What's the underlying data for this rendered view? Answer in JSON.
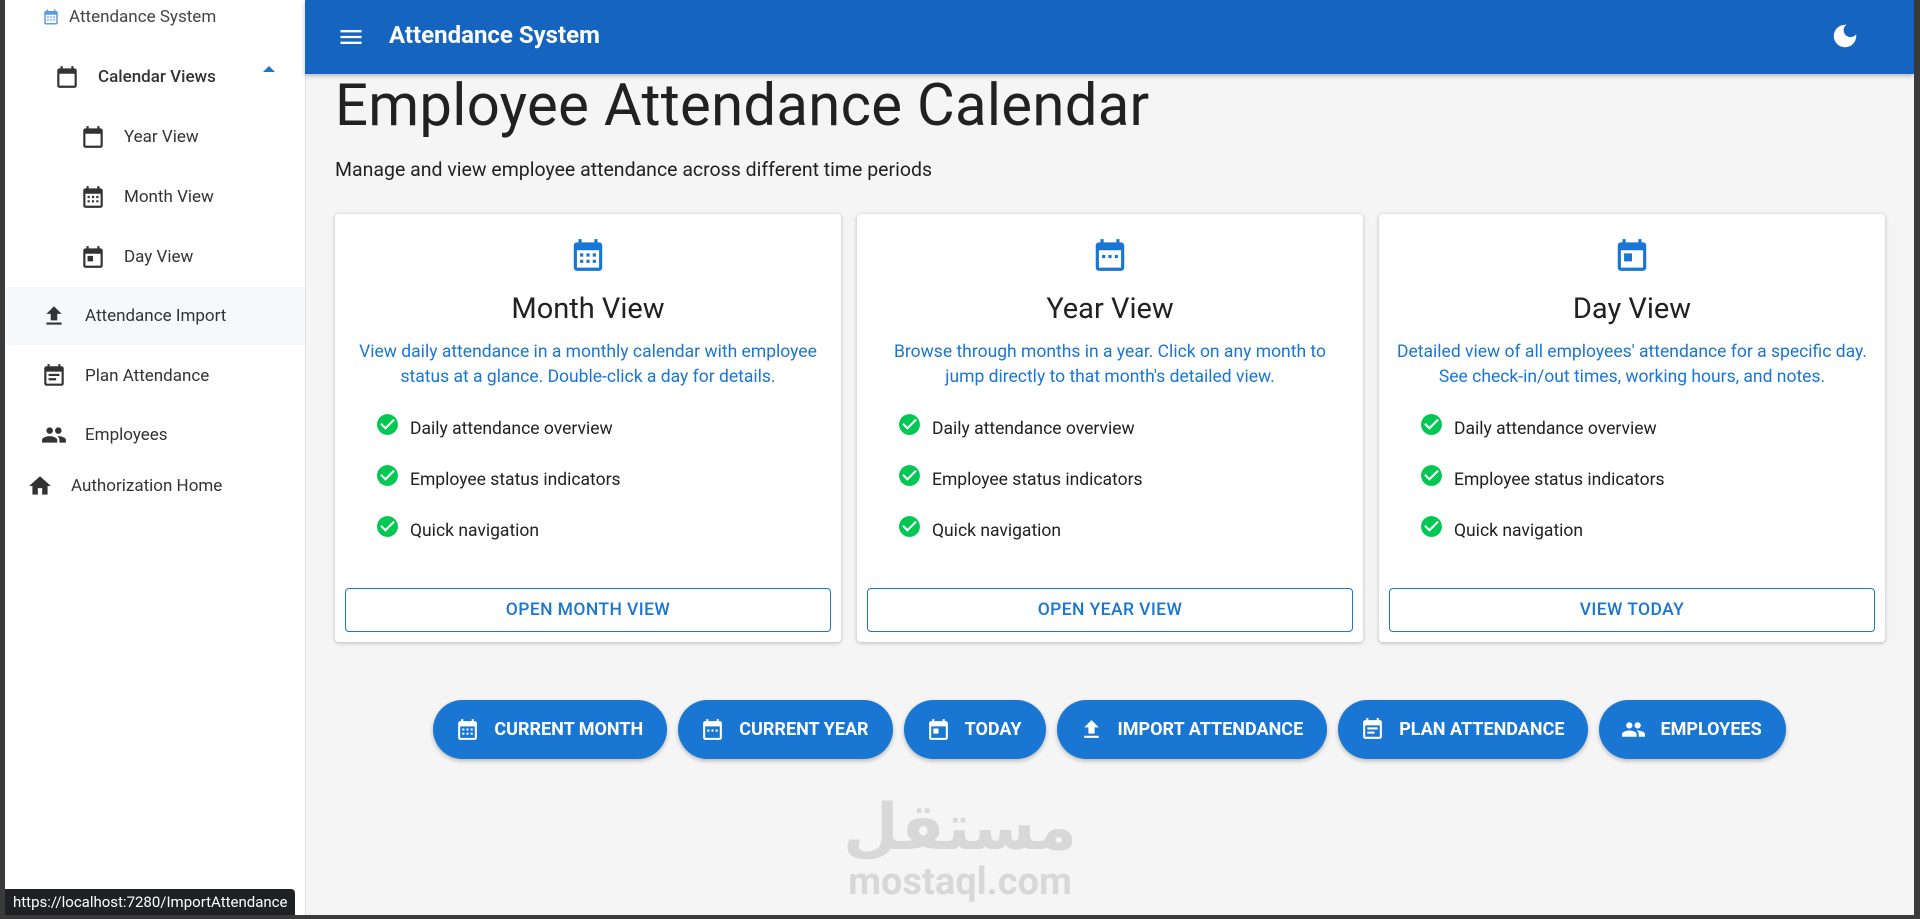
{
  "sidebar": {
    "brand": "Attendance System",
    "items": [
      "Calendar Views",
      "Year View",
      "Month View",
      "Day View",
      "Attendance Import",
      "Plan Attendance",
      "Employees",
      "Authorization Home"
    ]
  },
  "header": {
    "title": "Attendance System"
  },
  "page": {
    "title": "Employee Attendance Calendar",
    "subtitle": "Manage and view employee attendance across different time periods"
  },
  "cards": [
    {
      "title": "Month View",
      "description": "View daily attendance in a monthly calendar with employee status at a glance. Double-click a day for details.",
      "features": [
        "Daily attendance overview",
        "Employee status indicators",
        "Quick navigation"
      ],
      "button": "OPEN MONTH VIEW"
    },
    {
      "title": "Year View",
      "description": "Browse through months in a year. Click on any month to jump directly to that month's detailed view.",
      "features": [
        "Daily attendance overview",
        "Employee status indicators",
        "Quick navigation"
      ],
      "button": "OPEN YEAR VIEW"
    },
    {
      "title": "Day View",
      "description": "Detailed view of all employees' attendance for a specific day. See check-in/out times, working hours, and notes.",
      "features": [
        "Daily attendance overview",
        "Employee status indicators",
        "Quick navigation"
      ],
      "button": "VIEW TODAY"
    }
  ],
  "actions": [
    "CURRENT MONTH",
    "CURRENT YEAR",
    "TODAY",
    "IMPORT ATTENDANCE",
    "PLAN ATTENDANCE",
    "EMPLOYEES"
  ],
  "watermark": {
    "arabic": "مستقل",
    "latin": "mostaql.com"
  },
  "status_url": "https://localhost:7280/ImportAttendance"
}
